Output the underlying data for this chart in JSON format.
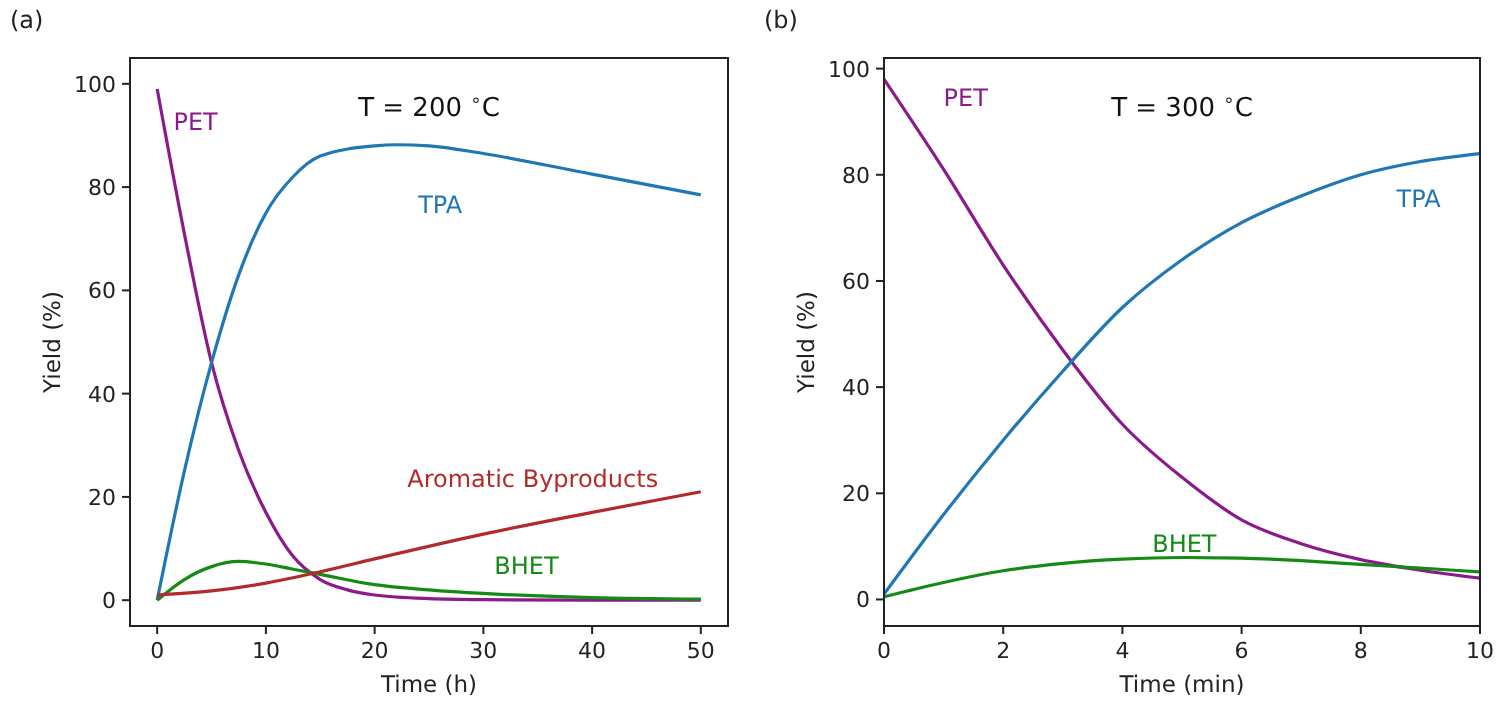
{
  "chart_data": [
    {
      "type": "line",
      "title": "(a)",
      "xlabel": "Time (h)",
      "ylabel": "Yield (%)",
      "annotations": [
        "T = 200 $^{∘}$C"
      ],
      "xlim": [
        -2.5,
        52.5
      ],
      "ylim": [
        -5,
        105
      ],
      "xticks": [
        0,
        10,
        20,
        30,
        40,
        50
      ],
      "yticks": [
        0,
        20,
        40,
        60,
        80,
        100
      ],
      "grid": false,
      "series": [
        {
          "name": "PET",
          "color": "#8b1a8b",
          "x": [
            0,
            2.5,
            5,
            7.5,
            10,
            12.5,
            15,
            17.5,
            20,
            25,
            30,
            40,
            50
          ],
          "values": [
            99,
            71,
            46,
            29,
            17,
            8.5,
            4,
            2,
            1,
            0.3,
            0.1,
            0,
            0
          ]
        },
        {
          "name": "TPA",
          "color": "#1f77b4",
          "x": [
            0,
            2.5,
            5,
            7.5,
            10,
            12.5,
            15,
            20,
            22,
            25,
            30,
            40,
            50
          ],
          "values": [
            0,
            25,
            46,
            63,
            75,
            82,
            86,
            88,
            88.2,
            88,
            86.5,
            82.5,
            78.5
          ]
        },
        {
          "name": "BHET",
          "color": "#158a15",
          "x": [
            0,
            2.5,
            5,
            7.5,
            10,
            12.5,
            15,
            20,
            25,
            30,
            40,
            50
          ],
          "values": [
            0,
            4,
            6.5,
            7.5,
            7,
            6,
            5,
            3,
            2,
            1.3,
            0.5,
            0.2
          ]
        },
        {
          "name": "Aromatic Byproducts",
          "color": "#b22a2a",
          "x": [
            0,
            5,
            10,
            15,
            20,
            30,
            40,
            50
          ],
          "values": [
            1,
            1.8,
            3.3,
            5.5,
            8,
            12.8,
            17,
            21
          ]
        }
      ]
    },
    {
      "type": "line",
      "title": "(b)",
      "xlabel": "Time (min)",
      "ylabel": "Yield (%)",
      "annotations": [
        "T = 300 $^{∘}$C"
      ],
      "xlim": [
        0,
        10
      ],
      "ylim": [
        -5,
        102
      ],
      "xticks": [
        0,
        2,
        4,
        6,
        8,
        10
      ],
      "yticks": [
        0,
        20,
        40,
        60,
        80,
        100
      ],
      "grid": false,
      "series": [
        {
          "name": "PET",
          "color": "#8b1a8b",
          "x": [
            0,
            1,
            2,
            3,
            4,
            5,
            6,
            7,
            8,
            9,
            10
          ],
          "values": [
            98,
            81,
            63,
            47,
            33,
            23,
            15,
            10.5,
            7.5,
            5.5,
            4
          ]
        },
        {
          "name": "TPA",
          "color": "#1f77b4",
          "x": [
            0,
            1,
            2,
            3,
            4,
            5,
            6,
            7,
            8,
            9,
            10
          ],
          "values": [
            1,
            16,
            30,
            43,
            55,
            64,
            71,
            76,
            80,
            82.5,
            84
          ]
        },
        {
          "name": "BHET",
          "color": "#158a15",
          "x": [
            0,
            1,
            2,
            3,
            4,
            5,
            6,
            7,
            8,
            9,
            10
          ],
          "values": [
            0.5,
            3.2,
            5.4,
            6.8,
            7.6,
            7.9,
            7.8,
            7.3,
            6.6,
            5.9,
            5.2
          ]
        }
      ]
    }
  ]
}
